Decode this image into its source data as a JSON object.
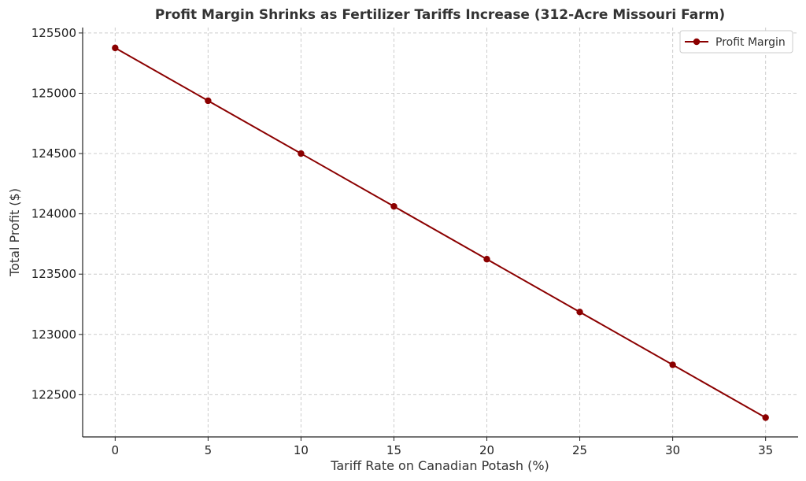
{
  "chart_data": {
    "type": "line",
    "title": "Profit Margin Shrinks as Fertilizer Tariffs Increase (312-Acre Missouri Farm)",
    "xlabel": "Tariff Rate on Canadian Potash (%)",
    "ylabel": "Total Profit ($)",
    "x": [
      0,
      5,
      10,
      15,
      20,
      25,
      30,
      35
    ],
    "xticks": [
      0,
      5,
      10,
      15,
      20,
      25,
      30,
      35
    ],
    "yticks": [
      122500,
      123000,
      123500,
      124000,
      124500,
      125000,
      125500
    ],
    "xlim": [
      -1.75,
      36.75
    ],
    "ylim": [
      122150,
      125545
    ],
    "grid": true,
    "legend_position": "top-right",
    "series": [
      {
        "name": "Profit Margin",
        "color": "#8b0000",
        "marker": "circle",
        "values": [
          125376,
          124938,
          124500,
          124062,
          123624,
          123186,
          122748,
          122310
        ]
      }
    ]
  }
}
